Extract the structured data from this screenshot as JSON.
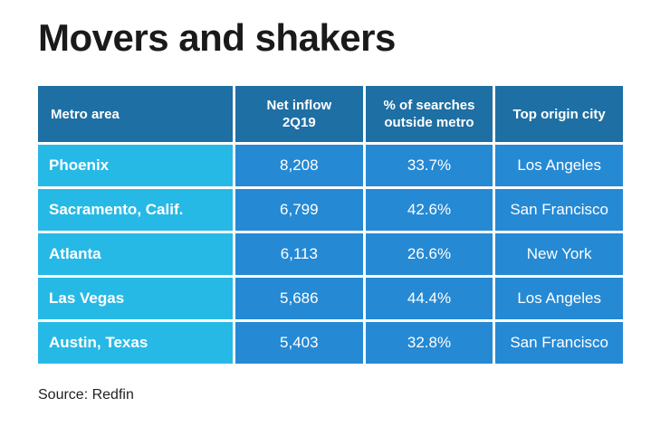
{
  "title": "Movers and shakers",
  "source": "Source: Redfin",
  "colors": {
    "header_bg": "#1e6fa3",
    "metro_cell_bg": "#27b9e6",
    "value_cell_bg": "#2589d4",
    "text_on_cells": "#ffffff"
  },
  "chart_data": {
    "type": "table",
    "title": "Movers and shakers",
    "columns": [
      {
        "label_line1": "Metro area",
        "label_line2": ""
      },
      {
        "label_line1": "Net inflow",
        "label_line2": "2Q19"
      },
      {
        "label_line1": "% of searches",
        "label_line2": "outside metro"
      },
      {
        "label_line1": "Top origin city",
        "label_line2": ""
      }
    ],
    "rows": [
      {
        "metro": "Phoenix",
        "net_inflow": "8,208",
        "pct_outside": "33.7%",
        "top_origin": "Los Angeles"
      },
      {
        "metro": "Sacramento, Calif.",
        "net_inflow": "6,799",
        "pct_outside": "42.6%",
        "top_origin": "San Francisco"
      },
      {
        "metro": "Atlanta",
        "net_inflow": "6,113",
        "pct_outside": "26.6%",
        "top_origin": "New York"
      },
      {
        "metro": "Las Vegas",
        "net_inflow": "5,686",
        "pct_outside": "44.4%",
        "top_origin": "Los Angeles"
      },
      {
        "metro": "Austin, Texas",
        "net_inflow": "5,403",
        "pct_outside": "32.8%",
        "top_origin": "San Francisco"
      }
    ]
  }
}
